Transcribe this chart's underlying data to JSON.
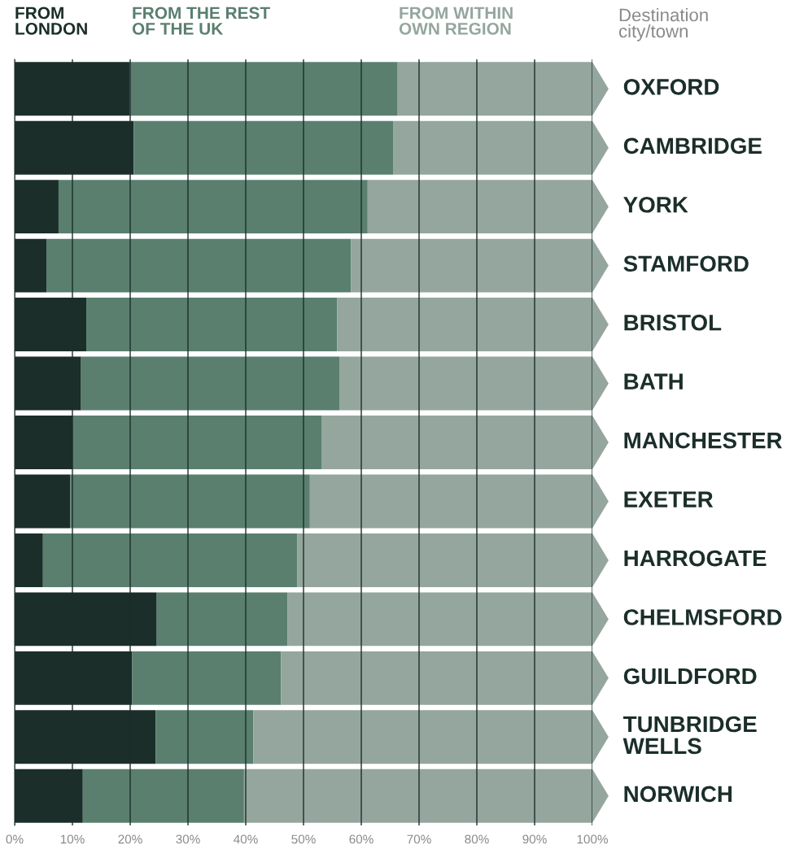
{
  "chart_data": {
    "type": "bar",
    "orientation": "horizontal",
    "stacked": true,
    "ylabel": "Destination\ncity/town",
    "categories": [
      "OXFORD",
      "CAMBRIDGE",
      "YORK",
      "STAMFORD",
      "BRISTOL",
      "BATH",
      "MANCHESTER",
      "EXETER",
      "HARROGATE",
      "CHELMSFORD",
      "GUILDFORD",
      "TUNBRIDGE\nWELLS",
      "NORWICH"
    ],
    "series": [
      {
        "name": "FROM\nLONDON",
        "color": "#1b2e2a",
        "values": [
          19.9,
          20.6,
          7.6,
          5.5,
          12.4,
          11.5,
          10.0,
          9.6,
          4.9,
          24.6,
          20.3,
          24.4,
          11.8
        ]
      },
      {
        "name": "FROM THE REST\nOF THE UK",
        "color": "#5a7f6f",
        "values": [
          46.4,
          44.9,
          53.5,
          52.7,
          43.4,
          44.7,
          43.1,
          41.5,
          44.0,
          22.6,
          25.8,
          16.9,
          27.9
        ]
      },
      {
        "name": "FROM WITHIN\nOWN REGION",
        "color": "#94a69d",
        "values": [
          33.7,
          34.5,
          38.9,
          41.8,
          44.2,
          43.8,
          46.9,
          48.9,
          51.1,
          52.8,
          53.9,
          58.7,
          60.3
        ]
      }
    ],
    "xlim": [
      0,
      100
    ],
    "xticks": [
      {
        "value": 0,
        "label": "0%"
      },
      {
        "value": 10,
        "label": "10%"
      },
      {
        "value": 20,
        "label": "20%"
      },
      {
        "value": 30,
        "label": "30%"
      },
      {
        "value": 40,
        "label": "40%"
      },
      {
        "value": 50,
        "label": "50%"
      },
      {
        "value": 60,
        "label": "60%"
      },
      {
        "value": 70,
        "label": "70%"
      },
      {
        "value": 80,
        "label": "80%"
      },
      {
        "value": 90,
        "label": "90%"
      },
      {
        "value": 100,
        "label": "100%"
      }
    ],
    "grid": "x",
    "legend": "top left"
  }
}
